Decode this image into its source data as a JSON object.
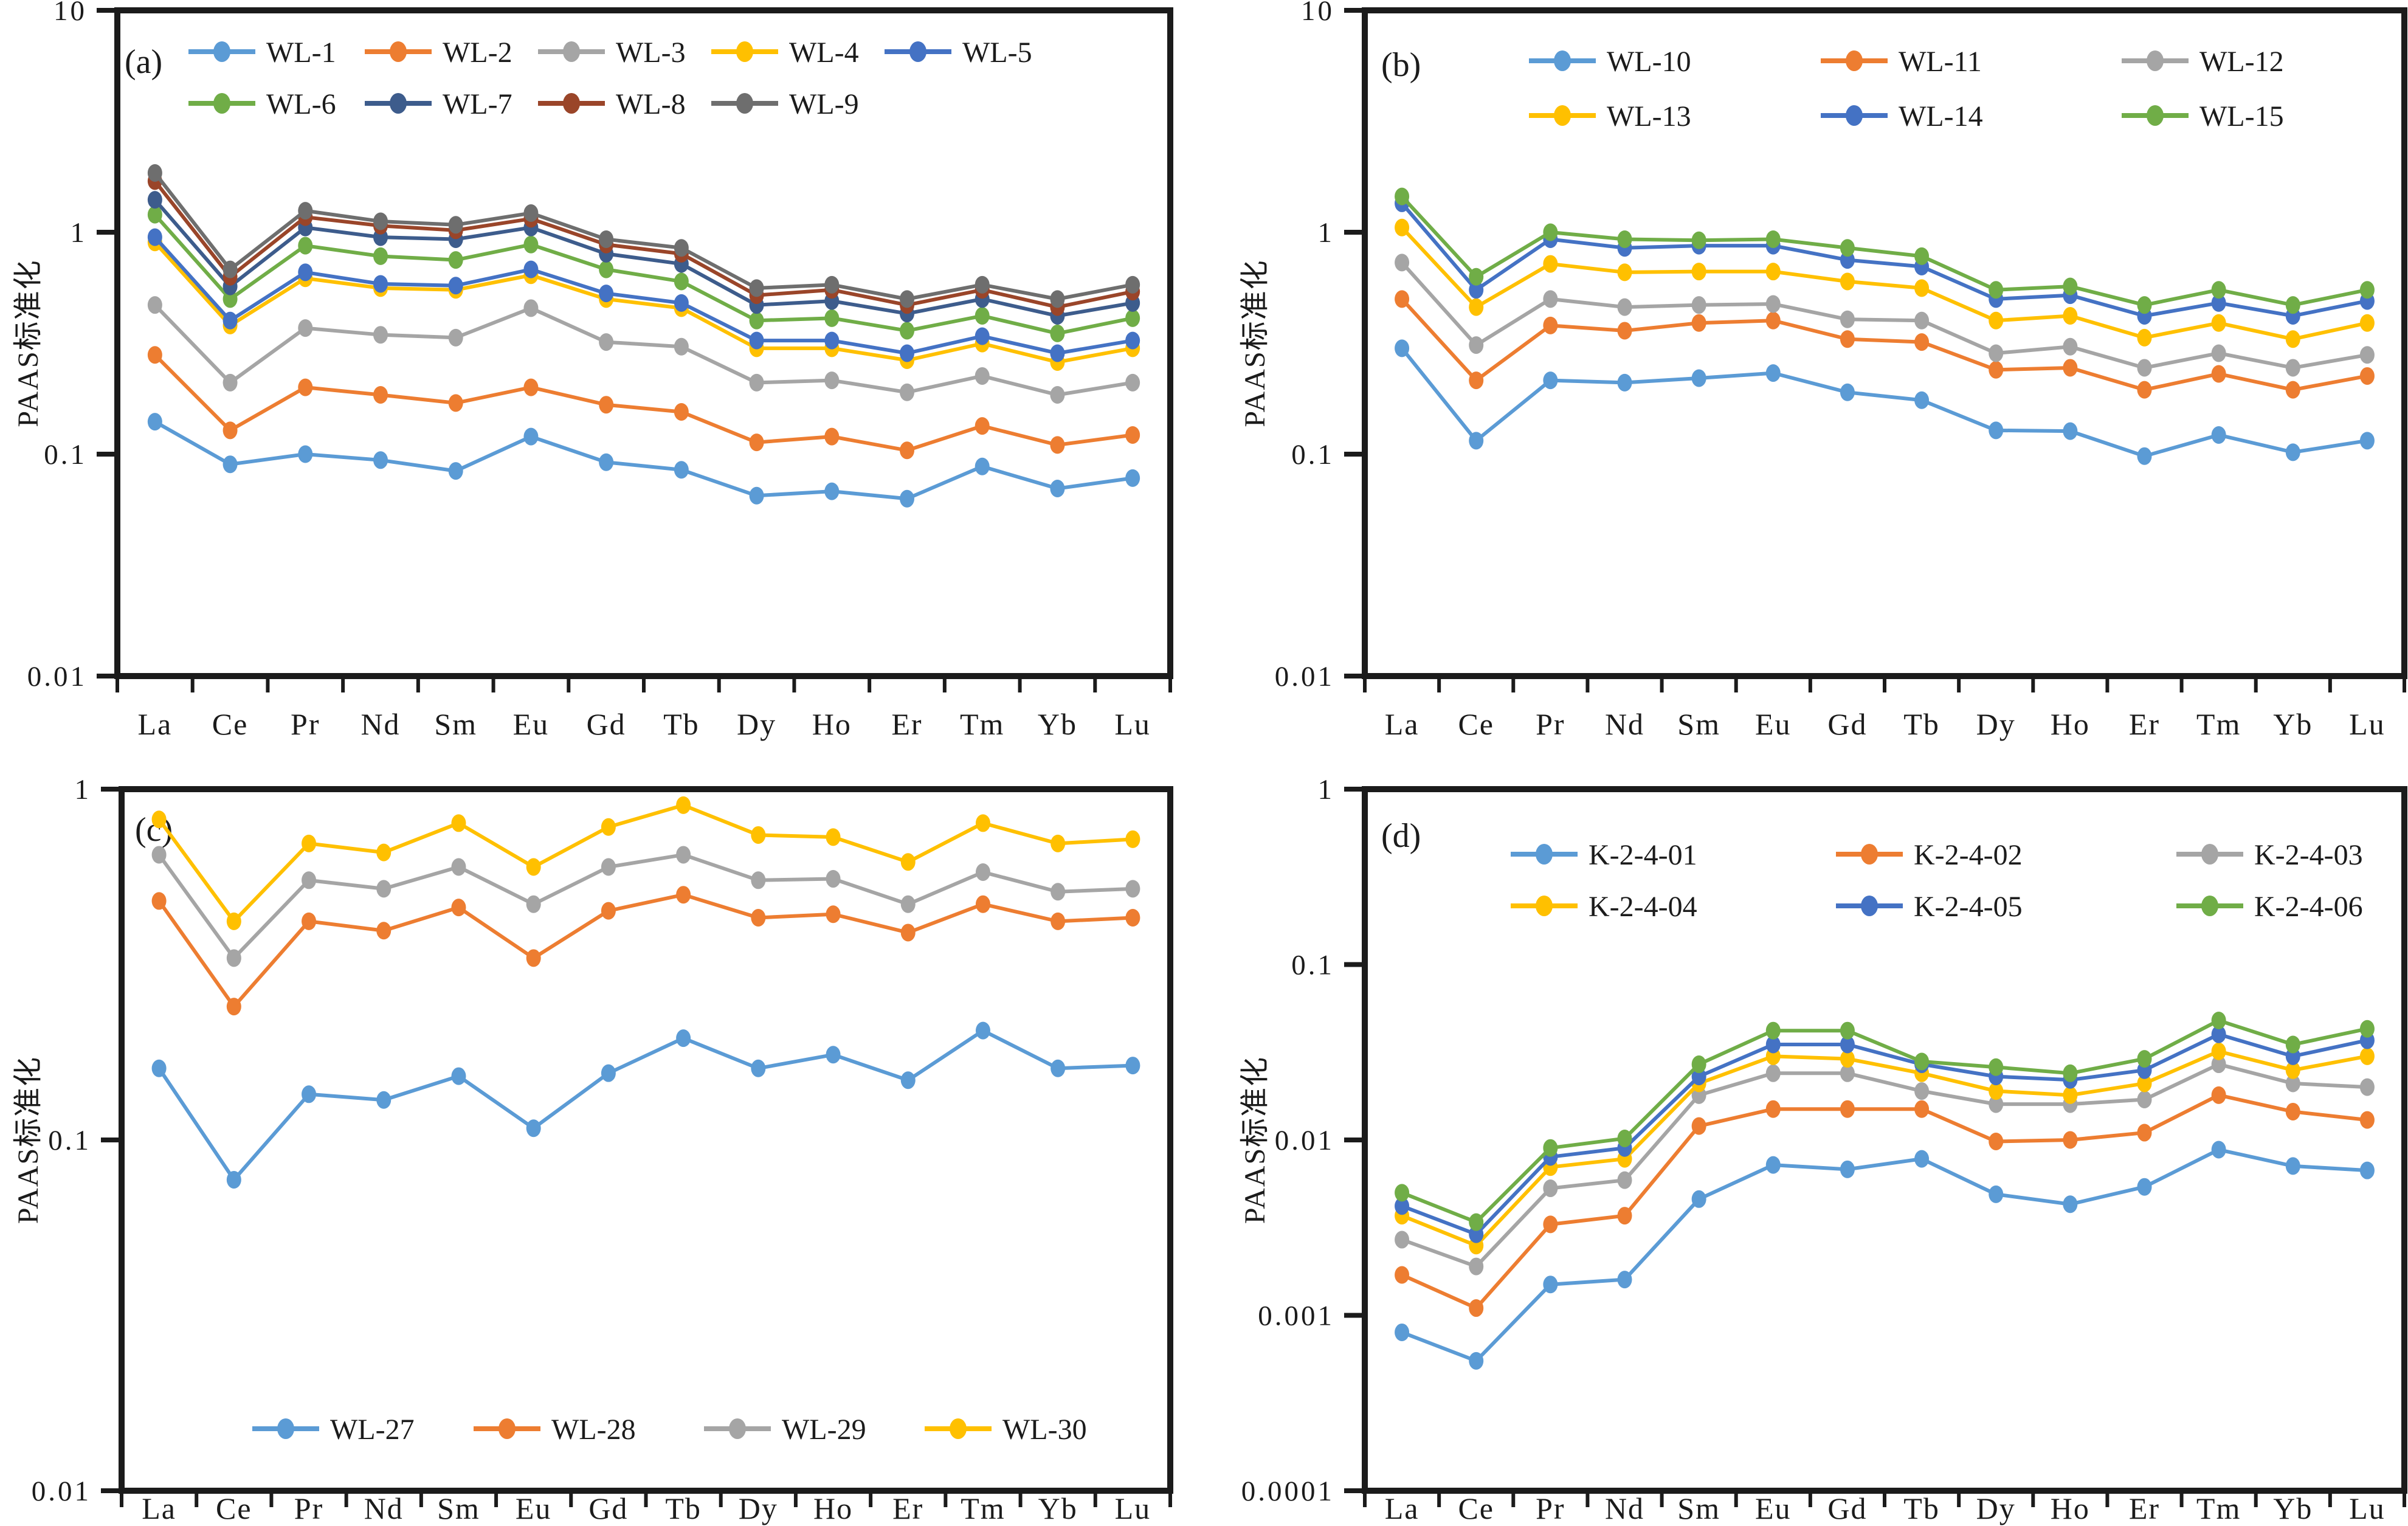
{
  "figure": {
    "ylabel": "PAAS标准化",
    "x_categories": [
      "La",
      "Ce",
      "Pr",
      "Nd",
      "Sm",
      "Eu",
      "Gd",
      "Tb",
      "Dy",
      "Ho",
      "Er",
      "Tm",
      "Yb",
      "Lu"
    ],
    "axis_color": "#1b1b1b",
    "background": "#ffffff"
  },
  "chart_data": [
    {
      "panel": "a",
      "panel_label": "(a)",
      "type": "line",
      "yscale": "log",
      "ylabel": "PAAS标准化",
      "ylim": [
        0.01,
        10
      ],
      "yticks": [
        "10",
        "1",
        "0.1",
        "0.01"
      ],
      "grid": false,
      "legend_position": "top-inside",
      "x_categories": [
        "La",
        "Ce",
        "Pr",
        "Nd",
        "Sm",
        "Eu",
        "Gd",
        "Tb",
        "Dy",
        "Ho",
        "Er",
        "Tm",
        "Yb",
        "Lu"
      ],
      "legend_rows": [
        [
          "WL-1",
          "WL-2",
          "WL-3",
          "WL-4",
          "WL-5"
        ],
        [
          "WL-6",
          "WL-7",
          "WL-8",
          "WL-9"
        ]
      ],
      "series": [
        {
          "name": "WL-1",
          "color": "#5B9BD5",
          "values": [
            0.14,
            0.09,
            0.1,
            0.094,
            0.084,
            0.12,
            0.092,
            0.085,
            0.065,
            0.068,
            0.063,
            0.088,
            0.07,
            0.078
          ]
        },
        {
          "name": "WL-2",
          "color": "#ED7D31",
          "values": [
            0.28,
            0.128,
            0.2,
            0.185,
            0.17,
            0.2,
            0.167,
            0.155,
            0.113,
            0.12,
            0.104,
            0.134,
            0.11,
            0.122
          ]
        },
        {
          "name": "WL-3",
          "color": "#A5A5A5",
          "values": [
            0.47,
            0.21,
            0.37,
            0.345,
            0.335,
            0.455,
            0.32,
            0.305,
            0.21,
            0.215,
            0.19,
            0.225,
            0.185,
            0.21
          ]
        },
        {
          "name": "WL-4",
          "color": "#FFC000",
          "values": [
            0.9,
            0.38,
            0.62,
            0.56,
            0.55,
            0.64,
            0.5,
            0.455,
            0.3,
            0.3,
            0.265,
            0.315,
            0.26,
            0.3
          ]
        },
        {
          "name": "WL-5",
          "color": "#4472C4",
          "values": [
            0.95,
            0.4,
            0.66,
            0.585,
            0.575,
            0.68,
            0.53,
            0.48,
            0.325,
            0.325,
            0.285,
            0.34,
            0.285,
            0.325
          ]
        },
        {
          "name": "WL-6",
          "color": "#70AD47",
          "values": [
            1.2,
            0.5,
            0.87,
            0.78,
            0.75,
            0.88,
            0.68,
            0.6,
            0.4,
            0.41,
            0.36,
            0.42,
            0.35,
            0.41
          ]
        },
        {
          "name": "WL-7",
          "color": "#3D5C8C",
          "values": [
            1.4,
            0.57,
            1.05,
            0.95,
            0.93,
            1.05,
            0.8,
            0.72,
            0.47,
            0.49,
            0.43,
            0.5,
            0.42,
            0.48
          ]
        },
        {
          "name": "WL-8",
          "color": "#9A4529",
          "values": [
            1.7,
            0.63,
            1.17,
            1.07,
            1.02,
            1.15,
            0.88,
            0.8,
            0.52,
            0.55,
            0.47,
            0.55,
            0.46,
            0.54
          ]
        },
        {
          "name": "WL-9",
          "color": "#6E6E6E",
          "values": [
            1.85,
            0.68,
            1.25,
            1.12,
            1.08,
            1.22,
            0.93,
            0.85,
            0.56,
            0.58,
            0.5,
            0.58,
            0.5,
            0.58
          ]
        }
      ]
    },
    {
      "panel": "b",
      "panel_label": "(b)",
      "type": "line",
      "yscale": "log",
      "ylabel": "PAAS标准化",
      "ylim": [
        0.01,
        10
      ],
      "yticks": [
        "10",
        "1",
        "0.1",
        "0.01"
      ],
      "grid": false,
      "legend_position": "top-inside",
      "x_categories": [
        "La",
        "Ce",
        "Pr",
        "Nd",
        "Sm",
        "Eu",
        "Gd",
        "Tb",
        "Dy",
        "Ho",
        "Er",
        "Tm",
        "Yb",
        "Lu"
      ],
      "legend_rows": [
        [
          "WL-10",
          "WL-11",
          "WL-12"
        ],
        [
          "WL-13",
          "WL-14",
          "WL-15"
        ]
      ],
      "series": [
        {
          "name": "WL-10",
          "color": "#5B9BD5",
          "values": [
            0.3,
            0.115,
            0.215,
            0.21,
            0.22,
            0.232,
            0.19,
            0.175,
            0.128,
            0.127,
            0.098,
            0.122,
            0.102,
            0.115
          ]
        },
        {
          "name": "WL-11",
          "color": "#ED7D31",
          "values": [
            0.5,
            0.215,
            0.38,
            0.36,
            0.39,
            0.4,
            0.33,
            0.32,
            0.24,
            0.245,
            0.195,
            0.23,
            0.195,
            0.225
          ]
        },
        {
          "name": "WL-12",
          "color": "#A5A5A5",
          "values": [
            0.73,
            0.31,
            0.5,
            0.46,
            0.47,
            0.475,
            0.405,
            0.4,
            0.285,
            0.305,
            0.245,
            0.285,
            0.245,
            0.28
          ]
        },
        {
          "name": "WL-13",
          "color": "#FFC000",
          "values": [
            1.05,
            0.46,
            0.72,
            0.66,
            0.665,
            0.665,
            0.6,
            0.56,
            0.4,
            0.42,
            0.335,
            0.39,
            0.33,
            0.39
          ]
        },
        {
          "name": "WL-14",
          "color": "#4472C4",
          "values": [
            1.35,
            0.55,
            0.93,
            0.85,
            0.87,
            0.87,
            0.75,
            0.7,
            0.5,
            0.52,
            0.42,
            0.48,
            0.42,
            0.49
          ]
        },
        {
          "name": "WL-15",
          "color": "#70AD47",
          "values": [
            1.45,
            0.63,
            1.0,
            0.93,
            0.92,
            0.93,
            0.85,
            0.78,
            0.55,
            0.57,
            0.47,
            0.55,
            0.47,
            0.55
          ]
        }
      ]
    },
    {
      "panel": "c",
      "panel_label": "(c)",
      "type": "line",
      "yscale": "log",
      "ylabel": "PAAS标准化",
      "ylim": [
        0.01,
        1
      ],
      "yticks": [
        "1",
        "0.1",
        "0.01"
      ],
      "grid": false,
      "legend_position": "bottom-inside",
      "x_categories": [
        "La",
        "Ce",
        "Pr",
        "Nd",
        "Sm",
        "Eu",
        "Gd",
        "Tb",
        "Dy",
        "Ho",
        "Er",
        "Tm",
        "Yb",
        "Lu"
      ],
      "legend_rows": [
        [
          "WL-27",
          "WL-28",
          "WL-29",
          "WL-30"
        ]
      ],
      "series": [
        {
          "name": "WL-27",
          "color": "#5B9BD5",
          "values": [
            0.16,
            0.077,
            0.135,
            0.13,
            0.152,
            0.108,
            0.155,
            0.195,
            0.16,
            0.175,
            0.148,
            0.205,
            0.16,
            0.163
          ]
        },
        {
          "name": "WL-28",
          "color": "#ED7D31",
          "values": [
            0.48,
            0.24,
            0.42,
            0.395,
            0.46,
            0.33,
            0.45,
            0.5,
            0.43,
            0.44,
            0.39,
            0.47,
            0.42,
            0.43
          ]
        },
        {
          "name": "WL-29",
          "color": "#A5A5A5",
          "values": [
            0.65,
            0.33,
            0.55,
            0.52,
            0.6,
            0.47,
            0.6,
            0.65,
            0.55,
            0.555,
            0.47,
            0.58,
            0.51,
            0.52
          ]
        },
        {
          "name": "WL-30",
          "color": "#FFC000",
          "values": [
            0.82,
            0.42,
            0.7,
            0.66,
            0.8,
            0.6,
            0.78,
            0.9,
            0.74,
            0.73,
            0.62,
            0.8,
            0.7,
            0.72
          ]
        }
      ]
    },
    {
      "panel": "d",
      "panel_label": "(d)",
      "type": "line",
      "yscale": "log",
      "ylabel": "PAAS标准化",
      "ylim": [
        0.0001,
        1
      ],
      "yticks": [
        "1",
        "0.1",
        "0.01",
        "0.001",
        "0.0001"
      ],
      "grid": false,
      "legend_position": "top-inside",
      "x_categories": [
        "La",
        "Ce",
        "Pr",
        "Nd",
        "Sm",
        "Eu",
        "Gd",
        "Tb",
        "Dy",
        "Ho",
        "Er",
        "Tm",
        "Yb",
        "Lu"
      ],
      "legend_rows": [
        [
          "K-2-4-01",
          "K-2-4-02",
          "K-2-4-03"
        ],
        [
          "K-2-4-04",
          "K-2-4-05",
          "K-2-4-06"
        ]
      ],
      "series": [
        {
          "name": "K-2-4-01",
          "color": "#5B9BD5",
          "values": [
            0.0008,
            0.00055,
            0.0015,
            0.0016,
            0.0046,
            0.0072,
            0.0068,
            0.0078,
            0.0049,
            0.0043,
            0.0054,
            0.0088,
            0.0071,
            0.0067
          ]
        },
        {
          "name": "K-2-4-02",
          "color": "#ED7D31",
          "values": [
            0.0017,
            0.0011,
            0.0033,
            0.0037,
            0.012,
            0.015,
            0.015,
            0.015,
            0.0098,
            0.01,
            0.011,
            0.018,
            0.0145,
            0.013
          ]
        },
        {
          "name": "K-2-4-03",
          "color": "#A5A5A5",
          "values": [
            0.0027,
            0.0019,
            0.0053,
            0.0059,
            0.018,
            0.024,
            0.024,
            0.019,
            0.016,
            0.016,
            0.017,
            0.027,
            0.021,
            0.02
          ]
        },
        {
          "name": "K-2-4-04",
          "color": "#FFC000",
          "values": [
            0.0037,
            0.0025,
            0.007,
            0.0078,
            0.021,
            0.03,
            0.029,
            0.024,
            0.019,
            0.018,
            0.021,
            0.032,
            0.025,
            0.03
          ]
        },
        {
          "name": "K-2-4-05",
          "color": "#4472C4",
          "values": [
            0.0042,
            0.0029,
            0.008,
            0.009,
            0.023,
            0.035,
            0.035,
            0.027,
            0.023,
            0.022,
            0.025,
            0.04,
            0.03,
            0.037
          ]
        },
        {
          "name": "K-2-4-06",
          "color": "#70AD47",
          "values": [
            0.005,
            0.0034,
            0.009,
            0.0102,
            0.027,
            0.042,
            0.042,
            0.028,
            0.026,
            0.024,
            0.029,
            0.048,
            0.035,
            0.043
          ]
        }
      ]
    }
  ]
}
